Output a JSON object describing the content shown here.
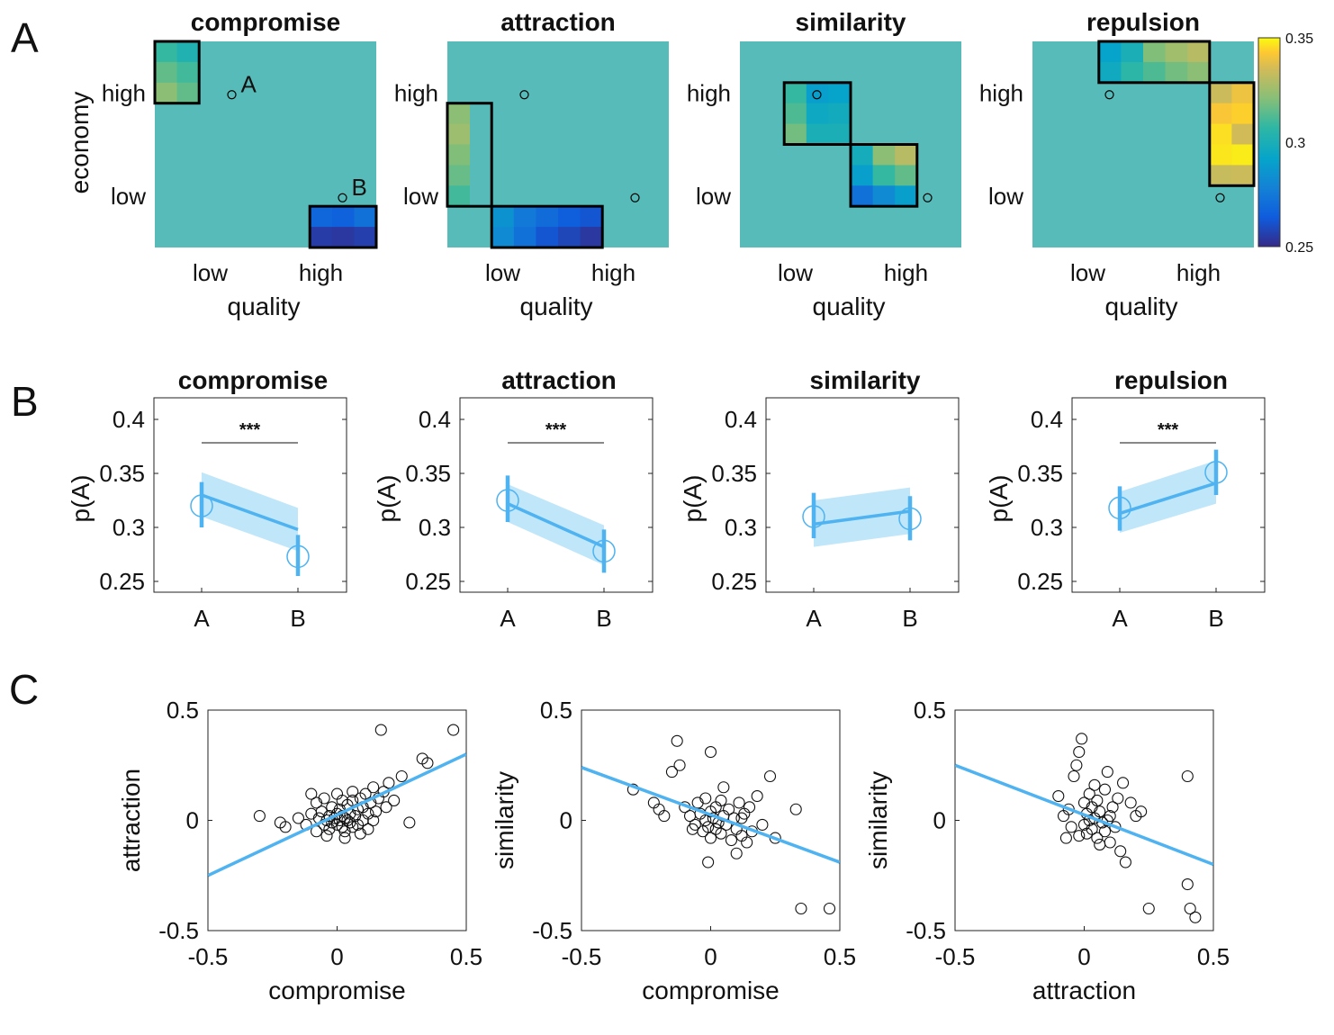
{
  "panels": {
    "A": {
      "letter": "A",
      "x_label": "quality",
      "y_label": "economy",
      "x_ticks": [
        "low",
        "high"
      ],
      "y_ticks": [
        "high",
        "low"
      ],
      "colorbar": {
        "min": 0.25,
        "max": 0.35,
        "ticks": [
          "0.35",
          "0.3",
          "0.25"
        ]
      },
      "background_color": "#57bcb9"
    },
    "B": {
      "letter": "B",
      "y_label": "p(A)",
      "y_ticks": [
        "0.4",
        "0.35",
        "0.3",
        "0.25"
      ],
      "x_ticks": [
        "A",
        "B"
      ],
      "line_color": "#4eb3f0",
      "band_color": "#b9e3f9"
    },
    "C": {
      "letter": "C",
      "ticks": [
        "-0.5",
        "0",
        "0.5"
      ],
      "line_color": "#4eb3f0"
    }
  },
  "chart_data": [
    {
      "panel": "A",
      "type": "heatmap",
      "title": "compromise",
      "xlabel": "quality",
      "ylabel": "economy",
      "options": [
        {
          "label": "A",
          "q": 0.25,
          "e": 0.75
        },
        {
          "label": "B",
          "q": 0.75,
          "e": 0.25
        }
      ],
      "regions": [
        {
          "box": [
            0,
            2,
            0,
            3
          ],
          "cells": [
            [
              0.308,
              0.302
            ],
            [
              0.315,
              0.31
            ],
            [
              0.322,
              0.315
            ]
          ]
        },
        {
          "box": [
            7,
            10,
            8,
            10
          ],
          "cells": [
            [
              0.268,
              0.266,
              0.272
            ],
            [
              0.255,
              0.254,
              0.256
            ]
          ]
        }
      ]
    },
    {
      "panel": "A",
      "type": "heatmap",
      "title": "attraction",
      "xlabel": "quality",
      "ylabel": "",
      "options": [
        {
          "point": true,
          "q": 0.25,
          "e": 0.75
        },
        {
          "point": true,
          "q": 0.75,
          "e": 0.25
        }
      ],
      "regions": [
        {
          "box": [
            0,
            2,
            3,
            8
          ],
          "cells": [
            [
              0.322
            ],
            [
              0.325
            ],
            [
              0.32
            ],
            [
              0.316
            ],
            [
              0.31
            ]
          ]
        },
        {
          "box": [
            2,
            7,
            8,
            10
          ],
          "cells": [
            [
              0.285,
              0.275,
              0.27,
              0.265,
              0.262
            ],
            [
              0.282,
              0.272,
              0.262,
              0.258,
              0.254
            ]
          ]
        }
      ]
    },
    {
      "panel": "A",
      "type": "heatmap",
      "title": "similarity",
      "xlabel": "quality",
      "ylabel": "",
      "options": [
        {
          "point": true,
          "q": 0.25,
          "e": 0.75
        },
        {
          "point": true,
          "q": 0.75,
          "e": 0.25
        }
      ],
      "regions": [
        {
          "box": [
            2,
            5,
            2,
            5
          ],
          "cells": [
            [
              0.308,
              0.29,
              0.292
            ],
            [
              0.312,
              0.295,
              0.297
            ],
            [
              0.318,
              0.3,
              0.3
            ]
          ]
        },
        {
          "box": [
            5,
            8,
            5,
            8
          ],
          "cells": [
            [
              0.298,
              0.322,
              0.33
            ],
            [
              0.29,
              0.308,
              0.315
            ],
            [
              0.272,
              0.282,
              0.29
            ]
          ]
        }
      ]
    },
    {
      "panel": "A",
      "type": "heatmap",
      "title": "repulsion",
      "xlabel": "quality",
      "ylabel": "",
      "options": [
        {
          "point": true,
          "q": 0.25,
          "e": 0.75
        },
        {
          "point": true,
          "q": 0.75,
          "e": 0.25
        }
      ],
      "regions": [
        {
          "box": [
            3,
            8,
            0,
            2
          ],
          "cells": [
            [
              0.292,
              0.3,
              0.32,
              0.326,
              0.33
            ],
            [
              0.296,
              0.306,
              0.312,
              0.318,
              0.322
            ]
          ]
        },
        {
          "box": [
            8,
            10,
            2,
            7
          ],
          "cells": [
            [
              0.334,
              0.34
            ],
            [
              0.342,
              0.344
            ],
            [
              0.346,
              0.335
            ],
            [
              0.347,
              0.348
            ],
            [
              0.333,
              0.334
            ]
          ]
        }
      ]
    },
    {
      "panel": "B",
      "type": "line",
      "title": "compromise",
      "ylabel": "p(A)",
      "categories": [
        "A",
        "B"
      ],
      "ylim": [
        0.24,
        0.42
      ],
      "means": [
        0.32,
        0.273
      ],
      "err": [
        [
          0.3,
          0.342
        ],
        [
          0.255,
          0.293
        ]
      ],
      "fit": [
        0.33,
        0.298
      ],
      "band_lo": [
        0.31,
        0.278
      ],
      "band_hi": [
        0.351,
        0.318
      ],
      "significance": "***"
    },
    {
      "panel": "B",
      "type": "line",
      "title": "attraction",
      "ylabel": "p(A)",
      "categories": [
        "A",
        "B"
      ],
      "ylim": [
        0.24,
        0.42
      ],
      "means": [
        0.325,
        0.278
      ],
      "err": [
        [
          0.305,
          0.348
        ],
        [
          0.258,
          0.298
        ]
      ],
      "fit": [
        0.322,
        0.282
      ],
      "band_lo": [
        0.305,
        0.265
      ],
      "band_hi": [
        0.34,
        0.302
      ],
      "significance": "***"
    },
    {
      "panel": "B",
      "type": "line",
      "title": "similarity",
      "ylabel": "p(A)",
      "categories": [
        "A",
        "B"
      ],
      "ylim": [
        0.24,
        0.42
      ],
      "means": [
        0.31,
        0.308
      ],
      "err": [
        [
          0.29,
          0.332
        ],
        [
          0.288,
          0.329
        ]
      ],
      "fit": [
        0.303,
        0.315
      ],
      "band_lo": [
        0.282,
        0.294
      ],
      "band_hi": [
        0.325,
        0.337
      ],
      "significance": ""
    },
    {
      "panel": "B",
      "type": "line",
      "title": "repulsion",
      "ylabel": "p(A)",
      "categories": [
        "A",
        "B"
      ],
      "ylim": [
        0.24,
        0.42
      ],
      "means": [
        0.318,
        0.351
      ],
      "err": [
        [
          0.297,
          0.338
        ],
        [
          0.33,
          0.372
        ]
      ],
      "fit": [
        0.313,
        0.341
      ],
      "band_lo": [
        0.295,
        0.322
      ],
      "band_hi": [
        0.333,
        0.362
      ],
      "significance": "***"
    },
    {
      "panel": "C",
      "type": "scatter",
      "xlabel": "compromise",
      "ylabel": "attraction",
      "xlim": [
        -0.5,
        0.5
      ],
      "ylim": [
        -0.5,
        0.5
      ],
      "fit": {
        "x": [
          -0.5,
          0.5
        ],
        "y": [
          -0.25,
          0.3
        ]
      },
      "points": [
        [
          -0.3,
          0.02
        ],
        [
          -0.22,
          -0.01
        ],
        [
          -0.2,
          -0.03
        ],
        [
          -0.15,
          0.01
        ],
        [
          -0.12,
          -0.02
        ],
        [
          -0.1,
          0.03
        ],
        [
          -0.08,
          -0.05
        ],
        [
          -0.07,
          0.01
        ],
        [
          -0.06,
          0.04
        ],
        [
          -0.05,
          -0.02
        ],
        [
          -0.04,
          0.0
        ],
        [
          -0.03,
          0.02
        ],
        [
          -0.03,
          -0.04
        ],
        [
          -0.02,
          0.06
        ],
        [
          -0.02,
          -0.01
        ],
        [
          -0.01,
          0.01
        ],
        [
          0.0,
          0.03
        ],
        [
          0.0,
          -0.02
        ],
        [
          0.01,
          0.0
        ],
        [
          0.01,
          0.05
        ],
        [
          0.02,
          -0.03
        ],
        [
          0.02,
          0.02
        ],
        [
          0.03,
          0.01
        ],
        [
          0.03,
          -0.05
        ],
        [
          0.04,
          0.07
        ],
        [
          0.04,
          0.0
        ],
        [
          0.05,
          -0.01
        ],
        [
          0.05,
          0.03
        ],
        [
          0.06,
          0.09
        ],
        [
          0.06,
          -0.03
        ],
        [
          0.07,
          0.02
        ],
        [
          0.08,
          0.05
        ],
        [
          0.08,
          -0.02
        ],
        [
          0.09,
          0.1
        ],
        [
          0.1,
          0.0
        ],
        [
          0.1,
          0.06
        ],
        [
          0.11,
          0.12
        ],
        [
          0.12,
          0.03
        ],
        [
          0.12,
          -0.04
        ],
        [
          0.13,
          0.08
        ],
        [
          0.14,
          0.15
        ],
        [
          0.15,
          0.04
        ],
        [
          0.16,
          0.1
        ],
        [
          0.17,
          0.41
        ],
        [
          0.18,
          0.13
        ],
        [
          0.19,
          0.06
        ],
        [
          0.2,
          0.17
        ],
        [
          0.22,
          0.09
        ],
        [
          0.25,
          0.2
        ],
        [
          0.28,
          -0.01
        ],
        [
          0.33,
          0.28
        ],
        [
          0.35,
          0.26
        ],
        [
          0.45,
          0.41
        ],
        [
          -0.1,
          0.12
        ],
        [
          -0.05,
          0.1
        ],
        [
          0.0,
          0.12
        ],
        [
          0.02,
          0.09
        ],
        [
          -0.08,
          0.08
        ],
        [
          0.06,
          0.13
        ],
        [
          0.14,
          0.0
        ],
        [
          -0.04,
          -0.07
        ],
        [
          0.03,
          -0.08
        ],
        [
          0.09,
          -0.06
        ]
      ]
    },
    {
      "panel": "C",
      "type": "scatter",
      "xlabel": "compromise",
      "ylabel": "similarity",
      "xlim": [
        -0.5,
        0.5
      ],
      "ylim": [
        -0.5,
        0.5
      ],
      "fit": {
        "x": [
          -0.5,
          0.5
        ],
        "y": [
          0.24,
          -0.19
        ]
      },
      "points": [
        [
          -0.3,
          0.14
        ],
        [
          -0.22,
          0.08
        ],
        [
          -0.2,
          0.05
        ],
        [
          -0.18,
          0.02
        ],
        [
          -0.15,
          0.22
        ],
        [
          -0.13,
          0.36
        ],
        [
          -0.12,
          0.25
        ],
        [
          -0.1,
          0.06
        ],
        [
          -0.08,
          0.02
        ],
        [
          -0.06,
          -0.02
        ],
        [
          -0.05,
          0.08
        ],
        [
          -0.04,
          0.03
        ],
        [
          -0.03,
          -0.05
        ],
        [
          -0.02,
          0.1
        ],
        [
          -0.02,
          0.0
        ],
        [
          -0.01,
          -0.03
        ],
        [
          0.0,
          0.04
        ],
        [
          0.0,
          -0.08
        ],
        [
          0.01,
          0.01
        ],
        [
          0.02,
          -0.04
        ],
        [
          0.02,
          0.06
        ],
        [
          0.03,
          -0.01
        ],
        [
          0.04,
          0.09
        ],
        [
          0.04,
          -0.06
        ],
        [
          0.05,
          0.02
        ],
        [
          0.06,
          -0.02
        ],
        [
          0.07,
          0.05
        ],
        [
          0.08,
          -0.09
        ],
        [
          0.09,
          0.01
        ],
        [
          0.1,
          -0.04
        ],
        [
          0.11,
          0.08
        ],
        [
          0.12,
          -0.07
        ],
        [
          0.13,
          0.03
        ],
        [
          0.14,
          -0.1
        ],
        [
          0.15,
          0.06
        ],
        [
          0.16,
          -0.05
        ],
        [
          0.18,
          0.11
        ],
        [
          0.2,
          -0.02
        ],
        [
          0.23,
          0.2
        ],
        [
          0.25,
          -0.08
        ],
        [
          0.33,
          0.05
        ],
        [
          0.35,
          -0.4
        ],
        [
          0.46,
          -0.4
        ],
        [
          0.0,
          0.31
        ],
        [
          -0.01,
          -0.19
        ],
        [
          0.1,
          -0.15
        ],
        [
          -0.07,
          -0.04
        ],
        [
          0.05,
          0.15
        ],
        [
          0.12,
          0.01
        ]
      ]
    },
    {
      "panel": "C",
      "type": "scatter",
      "xlabel": "attraction",
      "ylabel": "similarity",
      "xlim": [
        -0.5,
        0.5
      ],
      "ylim": [
        -0.5,
        0.5
      ],
      "fit": {
        "x": [
          -0.5,
          0.5
        ],
        "y": [
          0.25,
          -0.2
        ]
      },
      "points": [
        [
          -0.1,
          0.11
        ],
        [
          -0.08,
          0.02
        ],
        [
          -0.06,
          0.05
        ],
        [
          -0.05,
          -0.03
        ],
        [
          -0.04,
          0.2
        ],
        [
          -0.03,
          0.25
        ],
        [
          -0.02,
          0.31
        ],
        [
          -0.01,
          0.37
        ],
        [
          0.0,
          0.08
        ],
        [
          0.0,
          -0.02
        ],
        [
          0.01,
          0.03
        ],
        [
          0.01,
          -0.06
        ],
        [
          0.02,
          0.12
        ],
        [
          0.02,
          0.0
        ],
        [
          0.03,
          0.06
        ],
        [
          0.03,
          -0.04
        ],
        [
          0.04,
          0.01
        ],
        [
          0.05,
          0.09
        ],
        [
          0.05,
          -0.08
        ],
        [
          0.06,
          0.04
        ],
        [
          0.07,
          -0.01
        ],
        [
          0.08,
          0.14
        ],
        [
          0.08,
          -0.05
        ],
        [
          0.09,
          0.22
        ],
        [
          0.1,
          0.02
        ],
        [
          0.1,
          -0.1
        ],
        [
          0.11,
          0.06
        ],
        [
          0.12,
          -0.03
        ],
        [
          0.13,
          0.1
        ],
        [
          0.14,
          -0.14
        ],
        [
          0.15,
          0.17
        ],
        [
          0.16,
          -0.19
        ],
        [
          0.18,
          0.08
        ],
        [
          0.2,
          0.02
        ],
        [
          0.22,
          0.04
        ],
        [
          0.25,
          -0.4
        ],
        [
          0.4,
          0.2
        ],
        [
          0.4,
          -0.29
        ],
        [
          0.41,
          -0.4
        ],
        [
          0.43,
          -0.44
        ],
        [
          -0.02,
          -0.07
        ],
        [
          0.04,
          0.16
        ],
        [
          0.06,
          -0.11
        ],
        [
          -0.07,
          -0.08
        ],
        [
          0.09,
          0.0
        ]
      ]
    }
  ]
}
